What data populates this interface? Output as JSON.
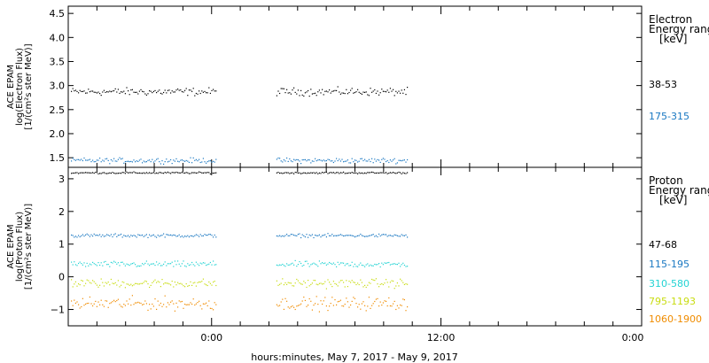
{
  "chart_data": [
    {
      "type": "scatter",
      "panel": "electron",
      "ylabel_lines": [
        "ACE EPAM",
        "log(Electron Flux)",
        "[1/(cm²s ster MeV)]"
      ],
      "ylim": [
        1.3,
        4.65
      ],
      "yticks": [
        1.5,
        2.0,
        2.5,
        3.0,
        3.5,
        4.0,
        4.5
      ],
      "ytick_labels": [
        "1.5",
        "2.0",
        "2.5",
        "3.0",
        "3.5",
        "4.0",
        "4.5"
      ],
      "legend_title_lines": [
        "Electron",
        "Energy ranges",
        "[keV]"
      ],
      "series": [
        {
          "name": "38-53",
          "color": "#000000",
          "mean": 2.87,
          "spread": 0.06
        },
        {
          "name": "175-315",
          "color": "#1a78c2",
          "mean": 1.44,
          "spread": 0.04
        }
      ]
    },
    {
      "type": "scatter",
      "panel": "proton",
      "ylabel_lines": [
        "ACE EPAM",
        "log(Proton Flux)",
        "[1/(cm²s ster MeV)]"
      ],
      "ylim": [
        -1.5,
        3.35
      ],
      "yticks": [
        -1,
        0,
        1,
        2,
        3
      ],
      "ytick_labels": [
        "−1",
        "0",
        "1",
        "2",
        "3"
      ],
      "legend_title_lines": [
        "Proton",
        "Energy ranges",
        "[keV]"
      ],
      "series": [
        {
          "name": "47-68",
          "color": "#000000",
          "mean": 3.18,
          "spread": 0.02
        },
        {
          "name": "115-195",
          "color": "#1a78c2",
          "mean": 1.26,
          "spread": 0.04
        },
        {
          "name": "310-580",
          "color": "#22d3d3",
          "mean": 0.38,
          "spread": 0.07
        },
        {
          "name": "795-1193",
          "color": "#c8dc10",
          "mean": -0.2,
          "spread": 0.1
        },
        {
          "name": "1060-1900",
          "color": "#f08c00",
          "mean": -0.82,
          "spread": 0.15
        }
      ]
    }
  ],
  "x_axis": {
    "xlim": [
      0,
      60
    ],
    "unit": "hours",
    "data_intervals": [
      [
        0,
        15.5
      ],
      [
        21.5,
        35.5
      ]
    ],
    "major_ticks": [
      15,
      39,
      63
    ],
    "major_labels": [
      "0:00",
      "12:00",
      "0:00"
    ],
    "minor_ticks": [
      3,
      6,
      9,
      12,
      18,
      21,
      24,
      27,
      30,
      33,
      36,
      42,
      45,
      48,
      51,
      54,
      57
    ],
    "label": "hours:minutes, May  7, 2017 - May  9, 2017"
  }
}
